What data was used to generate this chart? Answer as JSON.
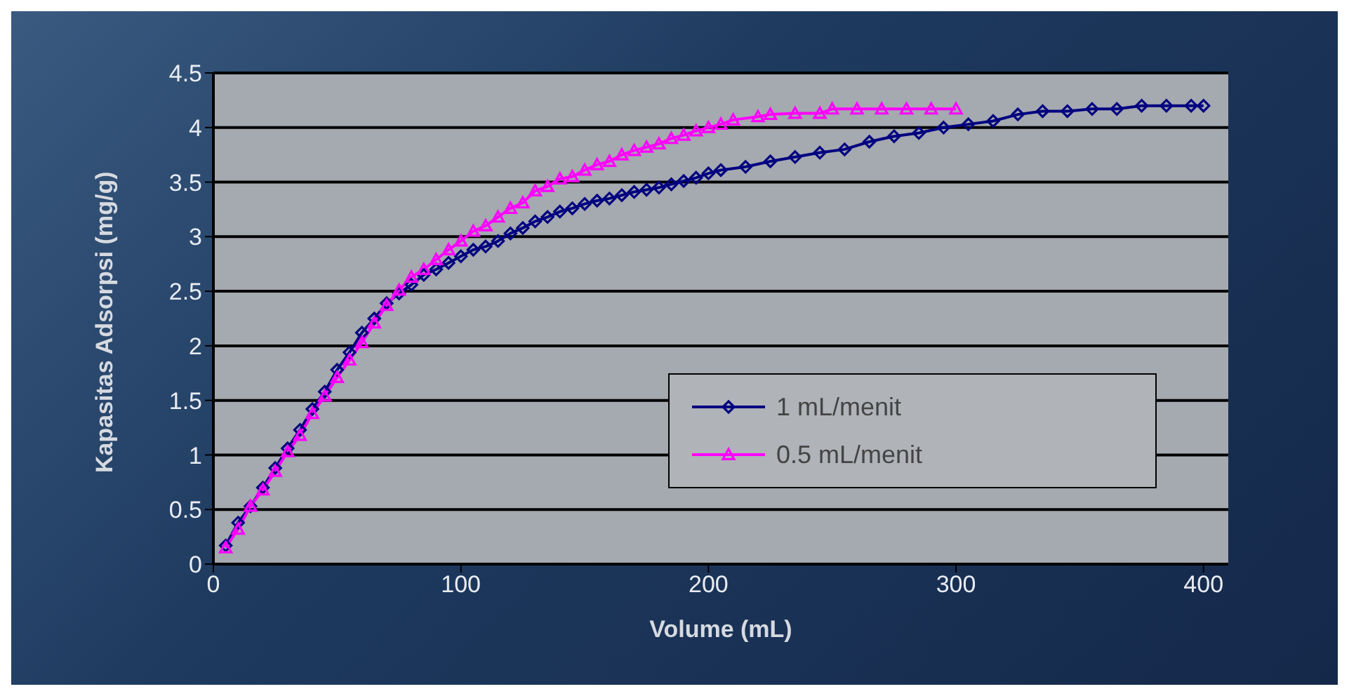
{
  "chart_data": {
    "type": "line",
    "xlabel": "Volume (mL)",
    "ylabel": "Kapasitas Adsorpsi (mg/g)",
    "xlim": [
      0,
      410
    ],
    "xticks": [
      0,
      100,
      200,
      300,
      400
    ],
    "ylim": [
      0,
      4.5
    ],
    "yticks": [
      0,
      0.5,
      1,
      1.5,
      2,
      2.5,
      3,
      3.5,
      4,
      4.5
    ],
    "grid": "y",
    "legend": "right",
    "series": [
      {
        "name": "1 mL/menit",
        "color": "#000080",
        "marker": "diamond",
        "x": [
          5,
          10,
          15,
          20,
          25,
          30,
          35,
          40,
          45,
          50,
          55,
          60,
          65,
          70,
          75,
          80,
          85,
          90,
          95,
          100,
          105,
          110,
          115,
          120,
          125,
          130,
          135,
          140,
          145,
          150,
          155,
          160,
          165,
          170,
          175,
          180,
          185,
          190,
          195,
          200,
          205,
          215,
          225,
          235,
          245,
          255,
          265,
          275,
          285,
          295,
          305,
          315,
          325,
          335,
          345,
          355,
          365,
          375,
          385,
          395,
          400
        ],
        "values": [
          0.17,
          0.38,
          0.53,
          0.7,
          0.88,
          1.06,
          1.23,
          1.42,
          1.58,
          1.78,
          1.94,
          2.12,
          2.25,
          2.39,
          2.48,
          2.56,
          2.65,
          2.7,
          2.76,
          2.82,
          2.88,
          2.91,
          2.96,
          3.03,
          3.08,
          3.14,
          3.18,
          3.23,
          3.26,
          3.3,
          3.33,
          3.35,
          3.38,
          3.41,
          3.43,
          3.45,
          3.48,
          3.51,
          3.54,
          3.58,
          3.61,
          3.64,
          3.69,
          3.73,
          3.77,
          3.8,
          3.87,
          3.92,
          3.95,
          4.0,
          4.03,
          4.06,
          4.12,
          4.15,
          4.15,
          4.17,
          4.17,
          4.2,
          4.2,
          4.2,
          4.2
        ]
      },
      {
        "name": "0.5 mL/menit",
        "color": "#ff00ff",
        "marker": "triangle",
        "x": [
          5,
          10,
          15,
          20,
          25,
          30,
          35,
          40,
          45,
          50,
          55,
          60,
          65,
          70,
          75,
          80,
          85,
          90,
          95,
          100,
          105,
          110,
          115,
          120,
          125,
          130,
          135,
          140,
          145,
          150,
          155,
          160,
          165,
          170,
          175,
          180,
          185,
          190,
          195,
          200,
          205,
          210,
          220,
          225,
          235,
          245,
          250,
          260,
          270,
          280,
          290,
          300
        ],
        "values": [
          0.15,
          0.32,
          0.53,
          0.68,
          0.85,
          1.03,
          1.18,
          1.38,
          1.54,
          1.71,
          1.87,
          2.03,
          2.21,
          2.37,
          2.51,
          2.63,
          2.7,
          2.79,
          2.88,
          2.96,
          3.05,
          3.1,
          3.18,
          3.26,
          3.31,
          3.42,
          3.46,
          3.53,
          3.55,
          3.61,
          3.66,
          3.69,
          3.75,
          3.79,
          3.82,
          3.85,
          3.9,
          3.93,
          3.97,
          4.0,
          4.03,
          4.07,
          4.1,
          4.12,
          4.13,
          4.13,
          4.17,
          4.17,
          4.17,
          4.17,
          4.17,
          4.17
        ]
      }
    ]
  }
}
